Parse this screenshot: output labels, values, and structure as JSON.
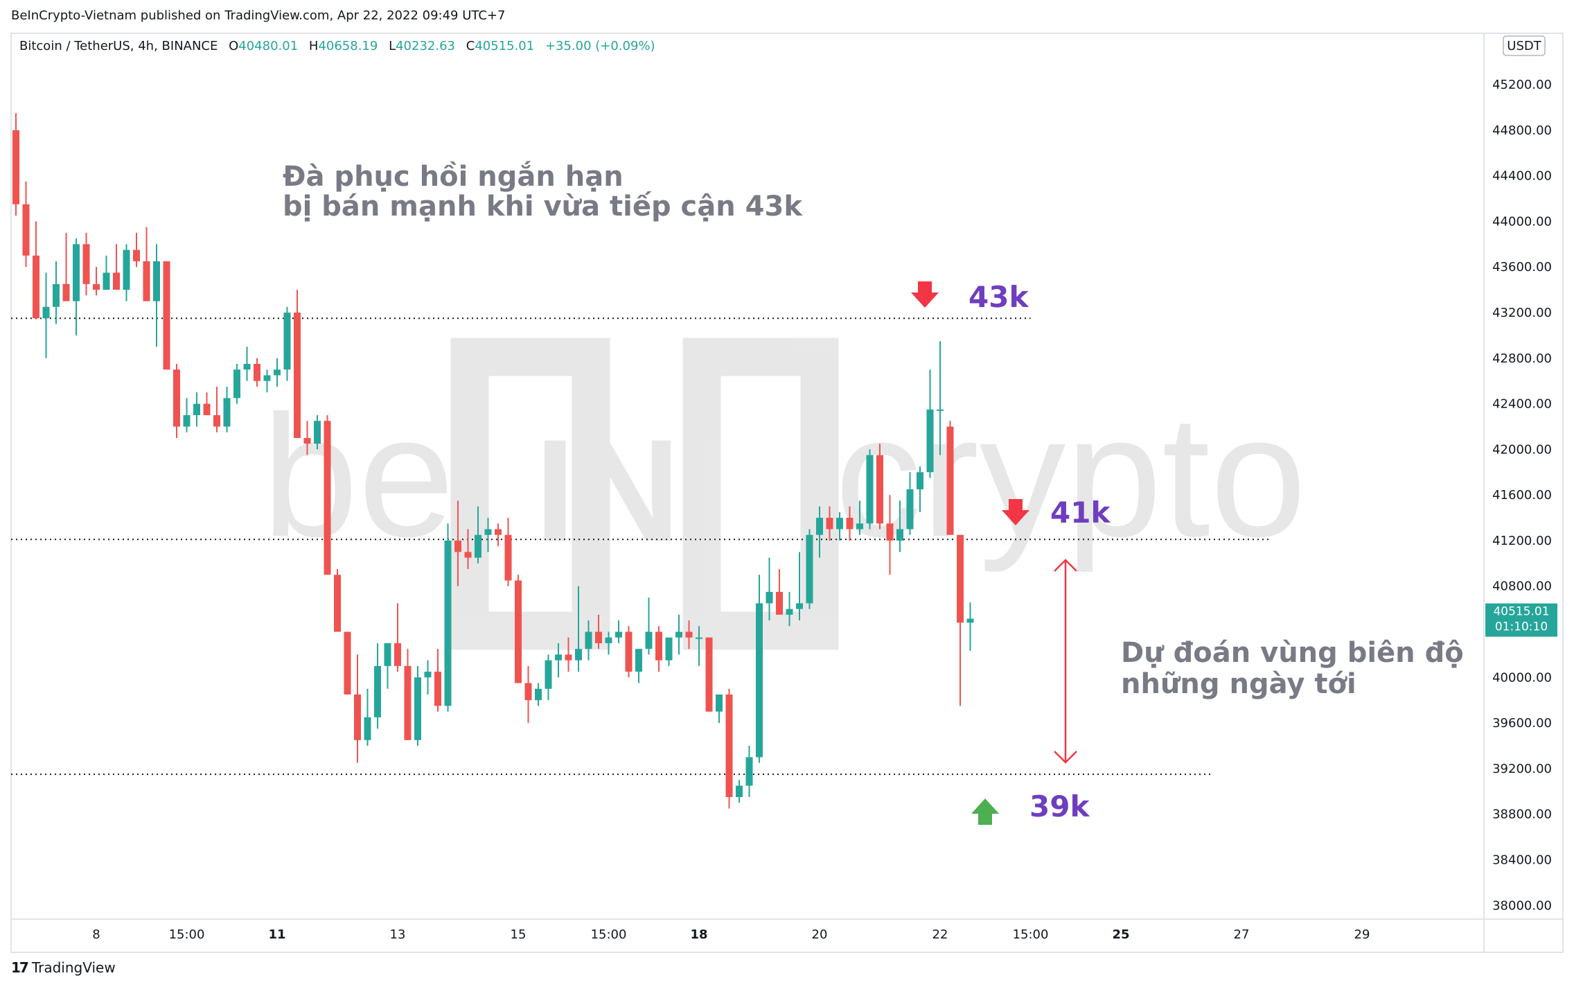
{
  "header": {
    "published_by": "BeInCrypto-Vietnam published on TradingView.com, Apr 22, 2022 09:49 UTC+7"
  },
  "footer": {
    "brand": "TradingView",
    "logo_mark": "17"
  },
  "watermark": {
    "text_left": "be",
    "text_mid": "IN",
    "text_right": "crypto"
  },
  "colors": {
    "up": "#26a69a",
    "down": "#ef5350",
    "annotation_purple": "#6f3ec0",
    "annotation_gray": "#787b86",
    "arrow_green": "#4caf50",
    "arrow_red": "#f23645",
    "price_badge": "#26a69a"
  },
  "chart_data": {
    "type": "candlestick",
    "symbol": "Bitcoin / TetherUS, 4h, BINANCE",
    "ohlc": {
      "o_label": "O",
      "o": "40480.01",
      "h_label": "H",
      "h": "40658.19",
      "l_label": "L",
      "l": "40232.63",
      "c_label": "C",
      "c": "40515.01",
      "change": "+35.00 (+0.09%)"
    },
    "currency": "USDT",
    "y_axis": {
      "ylim": [
        37880,
        45650
      ],
      "ticks": [
        "45200.00",
        "44800.00",
        "44400.00",
        "44000.00",
        "43600.00",
        "43200.00",
        "42800.00",
        "42400.00",
        "42000.00",
        "41600.00",
        "41200.00",
        "40800.00",
        "40400.00",
        "40000.00",
        "39600.00",
        "39200.00",
        "38800.00",
        "38400.00",
        "38000.00"
      ]
    },
    "x_axis": {
      "ticks": [
        {
          "label": "8",
          "idx": 8,
          "bold": false
        },
        {
          "label": "15:00",
          "idx": 17,
          "bold": false
        },
        {
          "label": "11",
          "idx": 26,
          "bold": true
        },
        {
          "label": "13",
          "idx": 38,
          "bold": false
        },
        {
          "label": "15",
          "idx": 50,
          "bold": false
        },
        {
          "label": "15:00",
          "idx": 59,
          "bold": false
        },
        {
          "label": "18",
          "idx": 68,
          "bold": true
        },
        {
          "label": "20",
          "idx": 80,
          "bold": false
        },
        {
          "label": "22",
          "idx": 92,
          "bold": false
        },
        {
          "label": "15:00",
          "idx": 101,
          "bold": false
        },
        {
          "label": "25",
          "idx": 110,
          "bold": true
        },
        {
          "label": "27",
          "idx": 122,
          "bold": false
        },
        {
          "label": "29",
          "idx": 134,
          "bold": false
        }
      ]
    },
    "current_price": {
      "value": 40515.01,
      "label": "40515.01",
      "countdown": "01:10:10"
    },
    "levels": [
      {
        "name": "resistance-43k",
        "value": 43150,
        "end_idx": 101
      },
      {
        "name": "level-41k",
        "value": 41210,
        "end_idx": 125
      },
      {
        "name": "support-39k",
        "value": 39150,
        "end_idx": 119
      }
    ],
    "annotations": {
      "title_line1": "Đà phục hồi ngắn hạn",
      "title_line2": "bị bán mạnh khi vừa tiếp cận 43k",
      "forecast_line1": "Dự đoán vùng biên độ",
      "forecast_line2": "những ngày tới",
      "label_43k": "43k",
      "label_41k": "41k",
      "label_39k": "39k"
    },
    "candles": [
      [
        44800,
        44950,
        44050,
        44150
      ],
      [
        44150,
        44350,
        43600,
        43700
      ],
      [
        43700,
        44000,
        43150,
        43150
      ],
      [
        43150,
        43550,
        42800,
        43250
      ],
      [
        43250,
        43650,
        43100,
        43450
      ],
      [
        43450,
        43900,
        43300,
        43300
      ],
      [
        43300,
        43850,
        43000,
        43800
      ],
      [
        43800,
        43900,
        43350,
        43450
      ],
      [
        43450,
        43600,
        43350,
        43400
      ],
      [
        43400,
        43700,
        43400,
        43550
      ],
      [
        43550,
        43800,
        43400,
        43400
      ],
      [
        43400,
        43800,
        43300,
        43750
      ],
      [
        43750,
        43900,
        43600,
        43650
      ],
      [
        43650,
        43950,
        43300,
        43300
      ],
      [
        43300,
        43800,
        42900,
        43650
      ],
      [
        43650,
        43650,
        42700,
        42700
      ],
      [
        42700,
        42750,
        42100,
        42200
      ],
      [
        42200,
        42450,
        42150,
        42300
      ],
      [
        42300,
        42500,
        42200,
        42400
      ],
      [
        42400,
        42500,
        42300,
        42300
      ],
      [
        42300,
        42550,
        42150,
        42200
      ],
      [
        42200,
        42550,
        42150,
        42450
      ],
      [
        42450,
        42750,
        42400,
        42700
      ],
      [
        42700,
        42900,
        42600,
        42750
      ],
      [
        42750,
        42800,
        42550,
        42600
      ],
      [
        42600,
        42700,
        42500,
        42650
      ],
      [
        42650,
        42800,
        42550,
        42700
      ],
      [
        42700,
        43250,
        42600,
        43200
      ],
      [
        43200,
        43400,
        42100,
        42100
      ],
      [
        42100,
        42250,
        41950,
        42050
      ],
      [
        42050,
        42300,
        42000,
        42250
      ],
      [
        42250,
        42300,
        40900,
        40900
      ],
      [
        40900,
        40950,
        40400,
        40400
      ],
      [
        40400,
        40400,
        39850,
        39850
      ],
      [
        39850,
        40200,
        39250,
        39450
      ],
      [
        39450,
        39900,
        39400,
        39650
      ],
      [
        39650,
        40300,
        39550,
        40100
      ],
      [
        40100,
        40300,
        39900,
        40300
      ],
      [
        40300,
        40650,
        40050,
        40100
      ],
      [
        40100,
        40250,
        39450,
        39450
      ],
      [
        39450,
        40100,
        39400,
        40000
      ],
      [
        40000,
        40150,
        39850,
        40050
      ],
      [
        40050,
        40250,
        39700,
        39750
      ],
      [
        39750,
        41350,
        39700,
        41200
      ],
      [
        41200,
        41550,
        40800,
        41100
      ],
      [
        41100,
        41300,
        40950,
        41050
      ],
      [
        41050,
        41500,
        41000,
        41250
      ],
      [
        41250,
        41400,
        41100,
        41300
      ],
      [
        41300,
        41350,
        41150,
        41250
      ],
      [
        41250,
        41400,
        40800,
        40850
      ],
      [
        40850,
        40900,
        39950,
        39950
      ],
      [
        39950,
        40100,
        39600,
        39800
      ],
      [
        39800,
        39950,
        39750,
        39900
      ],
      [
        39900,
        40200,
        39800,
        40150
      ],
      [
        40150,
        40300,
        40000,
        40200
      ],
      [
        40200,
        40350,
        40050,
        40150
      ],
      [
        40150,
        40800,
        40050,
        40250
      ],
      [
        40250,
        40500,
        40150,
        40400
      ],
      [
        40400,
        40550,
        40250,
        40300
      ],
      [
        40300,
        40400,
        40200,
        40350
      ],
      [
        40350,
        40500,
        40300,
        40400
      ],
      [
        40400,
        40450,
        40000,
        40050
      ],
      [
        40050,
        40250,
        39950,
        40250
      ],
      [
        40250,
        40700,
        40200,
        40400
      ],
      [
        40400,
        40450,
        40050,
        40150
      ],
      [
        40150,
        40300,
        40100,
        40350
      ],
      [
        40350,
        40550,
        40200,
        40400
      ],
      [
        40400,
        40500,
        40250,
        40350
      ],
      [
        40350,
        40450,
        40100,
        40350
      ],
      [
        40350,
        40350,
        39700,
        39700
      ],
      [
        39700,
        39850,
        39600,
        39850
      ],
      [
        39850,
        39900,
        38850,
        38950
      ],
      [
        38950,
        39100,
        38900,
        39050
      ],
      [
        39050,
        39400,
        38950,
        39300
      ],
      [
        39300,
        40900,
        39250,
        40650
      ],
      [
        40650,
        41050,
        40500,
        40750
      ],
      [
        40750,
        40950,
        40600,
        40550
      ],
      [
        40550,
        40750,
        40450,
        40600
      ],
      [
        40600,
        41100,
        40500,
        40650
      ],
      [
        40650,
        41300,
        40600,
        41250
      ],
      [
        41250,
        41500,
        41050,
        41400
      ],
      [
        41400,
        41500,
        41200,
        41300
      ],
      [
        41300,
        41450,
        41200,
        41400
      ],
      [
        41400,
        41500,
        41200,
        41300
      ],
      [
        41300,
        41550,
        41250,
        41350
      ],
      [
        41350,
        42000,
        41300,
        41950
      ],
      [
        41950,
        42050,
        41300,
        41350
      ],
      [
        41350,
        41600,
        40900,
        41200
      ],
      [
        41200,
        41550,
        41100,
        41300
      ],
      [
        41300,
        41800,
        41250,
        41650
      ],
      [
        41650,
        41850,
        41450,
        41800
      ],
      [
        41800,
        42700,
        41750,
        42350
      ],
      [
        42350,
        42950,
        41950,
        42350
      ],
      [
        42200,
        42250,
        41250,
        41250
      ],
      [
        41250,
        41250,
        39750,
        40480
      ],
      [
        40480,
        40658,
        40233,
        40515
      ]
    ]
  }
}
